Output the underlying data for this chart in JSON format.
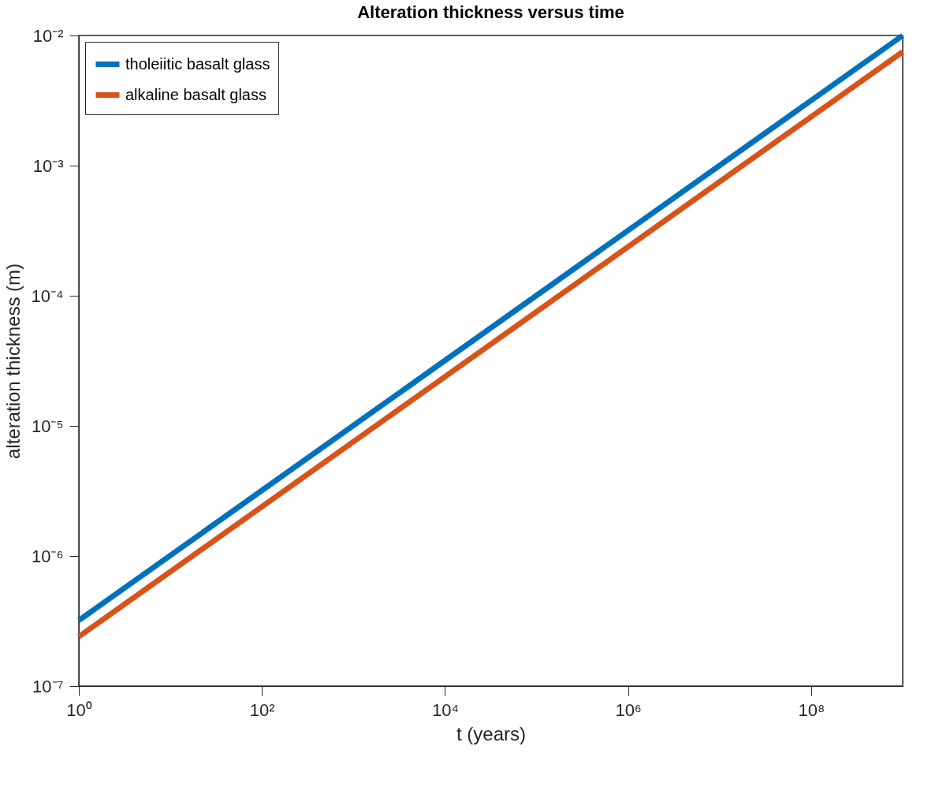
{
  "chart_data": {
    "type": "line",
    "title": "Alteration thickness versus time",
    "xlabel": "t (years)",
    "ylabel": "alteration thickness (m)",
    "log": "xy",
    "x": [
      1,
      1000000000
    ],
    "series": [
      {
        "name": "tholeiitic basalt glass",
        "color": "#0072bd",
        "values": [
          3.2e-07,
          0.01
        ]
      },
      {
        "name": "alkaline basalt glass",
        "color": "#d95319",
        "values": [
          2.4e-07,
          0.0075
        ]
      }
    ],
    "xlim": [
      1,
      1000000000
    ],
    "ylim": [
      1e-07,
      0.01
    ],
    "xticks": [
      {
        "value": 1,
        "label": "10⁰"
      },
      {
        "value": 100,
        "label": "10²"
      },
      {
        "value": 10000,
        "label": "10⁴"
      },
      {
        "value": 1000000,
        "label": "10⁶"
      },
      {
        "value": 100000000,
        "label": "10⁸"
      }
    ],
    "yticks": [
      {
        "value": 1e-07,
        "label": "10⁻⁷"
      },
      {
        "value": 1e-06,
        "label": "10⁻⁶"
      },
      {
        "value": 1e-05,
        "label": "10⁻⁵"
      },
      {
        "value": 0.0001,
        "label": "10⁻⁴"
      },
      {
        "value": 0.001,
        "label": "10⁻³"
      },
      {
        "value": 0.01,
        "label": "10⁻²"
      }
    ],
    "grid": false,
    "legend": "top left",
    "marker": "none",
    "line_style": "solid"
  }
}
